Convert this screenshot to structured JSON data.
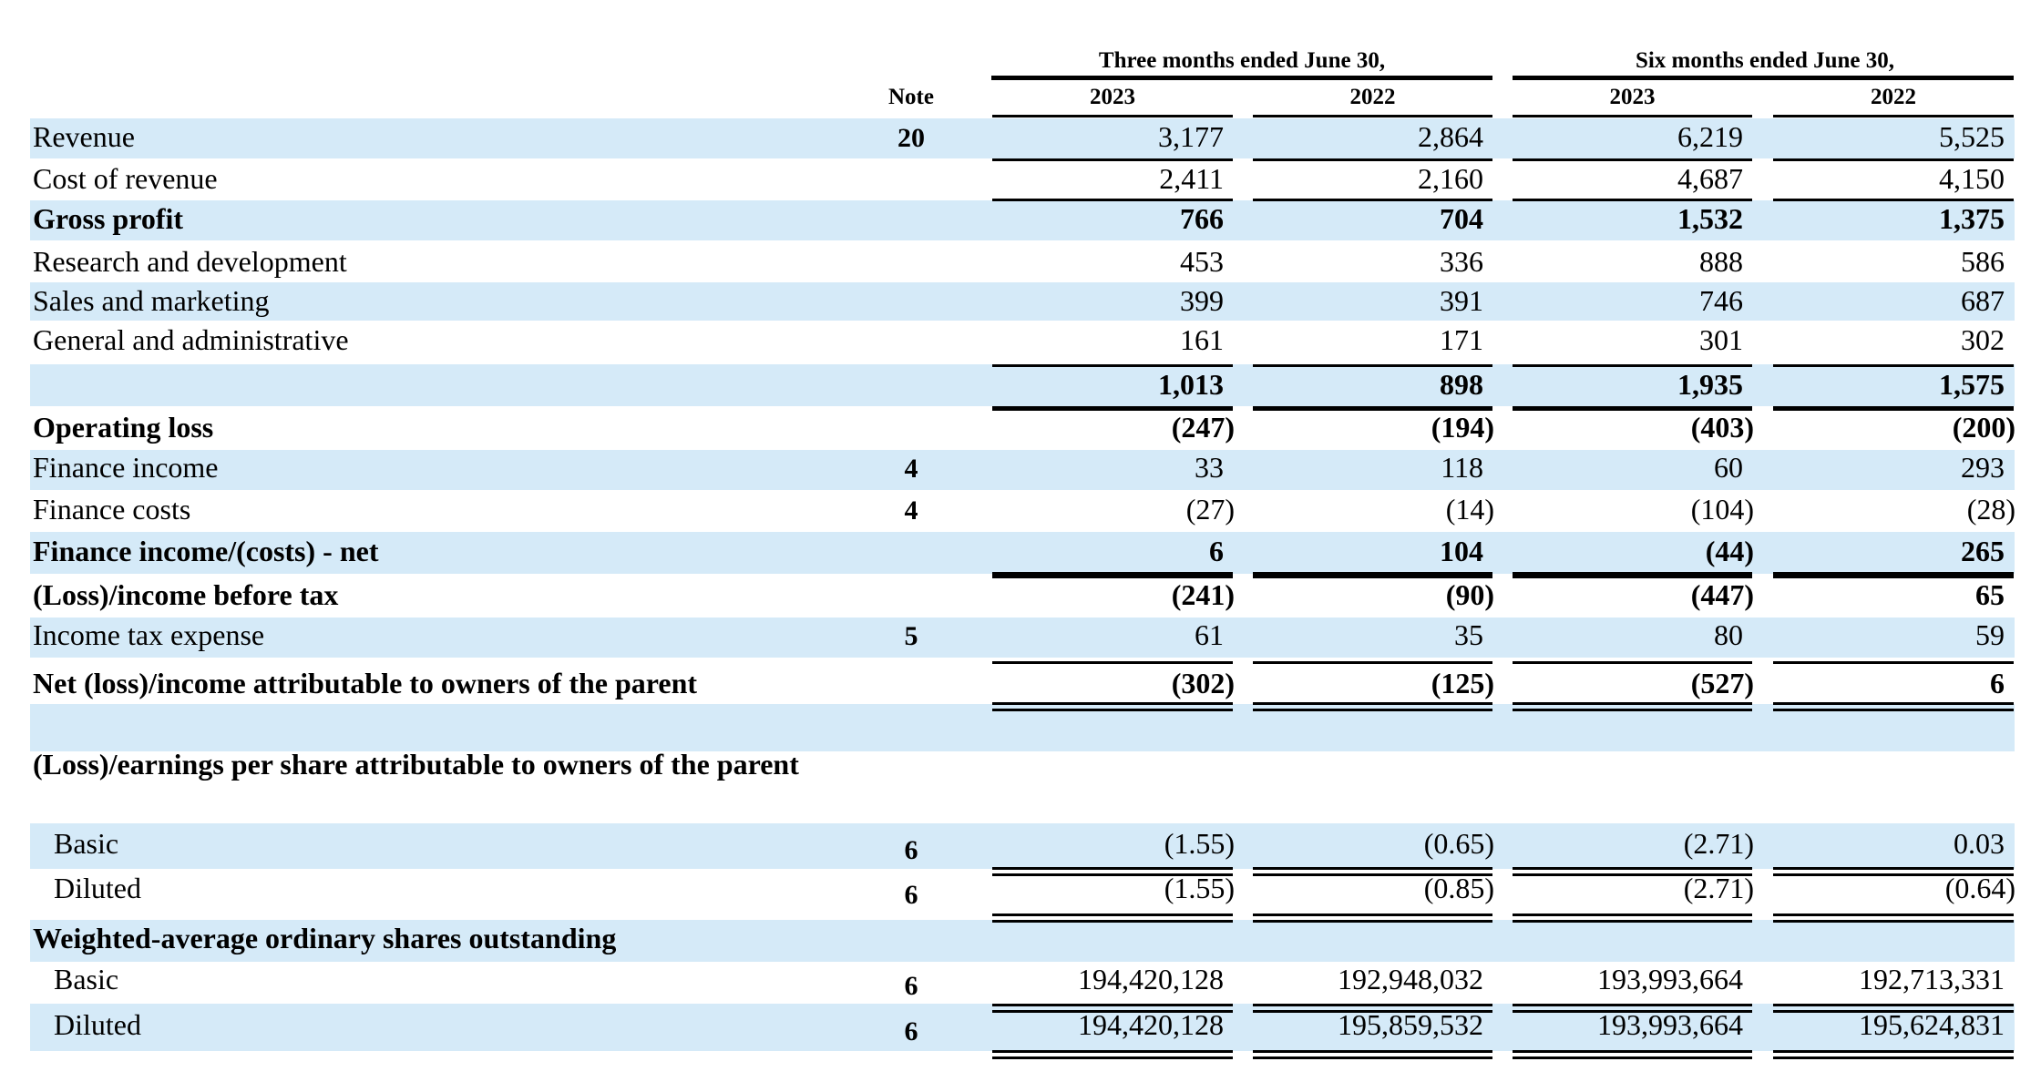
{
  "header": {
    "three_months": "Three months ended June 30,",
    "six_months": "Six months ended June 30,",
    "note_col": "Note",
    "years": [
      "2023",
      "2022",
      "2023",
      "2022"
    ]
  },
  "rows": [
    {
      "id": "revenue",
      "label": "Revenue",
      "note": "20",
      "values": [
        "3,177",
        "2,864",
        "6,219",
        "5,525"
      ],
      "bold": false
    },
    {
      "id": "cost-of-revenue",
      "label": "Cost of revenue",
      "note": "",
      "values": [
        "2,411",
        "2,160",
        "4,687",
        "4,150"
      ],
      "bold": false
    },
    {
      "id": "gross-profit",
      "label": "Gross profit",
      "note": "",
      "values": [
        "766",
        "704",
        "1,532",
        "1,375"
      ],
      "bold": true
    },
    {
      "id": "research-development",
      "label": "Research and development",
      "note": "",
      "values": [
        "453",
        "336",
        "888",
        "586"
      ],
      "bold": false
    },
    {
      "id": "sales-marketing",
      "label": "Sales and marketing",
      "note": "",
      "values": [
        "399",
        "391",
        "746",
        "687"
      ],
      "bold": false
    },
    {
      "id": "general-administrative",
      "label": "General and administrative",
      "note": "",
      "values": [
        "161",
        "171",
        "301",
        "302"
      ],
      "bold": false
    },
    {
      "id": "total-operating-expenses",
      "label": "",
      "note": "",
      "values": [
        "1,013",
        "898",
        "1,935",
        "1,575"
      ],
      "bold": true
    },
    {
      "id": "operating-loss",
      "label": "Operating loss",
      "note": "",
      "values": [
        "(247)",
        "(194)",
        "(403)",
        "(200)"
      ],
      "bold": true
    },
    {
      "id": "finance-income",
      "label": "Finance income",
      "note": "4",
      "values": [
        "33",
        "118",
        "60",
        "293"
      ],
      "bold": false
    },
    {
      "id": "finance-costs",
      "label": "Finance costs",
      "note": "4",
      "values": [
        "(27)",
        "(14)",
        "(104)",
        "(28)"
      ],
      "bold": false
    },
    {
      "id": "finance-net",
      "label": "Finance income/(costs) - net",
      "note": "",
      "values": [
        "6",
        "104",
        "(44)",
        "265"
      ],
      "bold": true
    },
    {
      "id": "income-before-tax",
      "label": "(Loss)/income before tax",
      "note": "",
      "values": [
        "(241)",
        "(90)",
        "(447)",
        "65"
      ],
      "bold": true
    },
    {
      "id": "income-tax",
      "label": "Income tax expense",
      "note": "5",
      "values": [
        "61",
        "35",
        "80",
        "59"
      ],
      "bold": false
    },
    {
      "id": "net-income",
      "label": "Net (loss)/income attributable to owners of the parent",
      "note": "",
      "values": [
        "(302)",
        "(125)",
        "(527)",
        "6"
      ],
      "bold": true
    },
    {
      "id": "eps-heading",
      "label": "(Loss)/earnings per share attributable to owners of the parent",
      "note": "",
      "values": [
        "",
        "",
        "",
        ""
      ],
      "bold": true
    },
    {
      "id": "eps-basic",
      "label": "Basic",
      "note": "6",
      "values": [
        "(1.55)",
        "(0.65)",
        "(2.71)",
        "0.03"
      ],
      "bold": false
    },
    {
      "id": "eps-diluted",
      "label": "Diluted",
      "note": "6",
      "values": [
        "(1.55)",
        "(0.85)",
        "(2.71)",
        "(0.64)"
      ],
      "bold": false
    },
    {
      "id": "shares-heading",
      "label": "Weighted-average ordinary shares outstanding",
      "note": "",
      "values": [
        "",
        "",
        "",
        ""
      ],
      "bold": true
    },
    {
      "id": "shares-basic",
      "label": "Basic",
      "note": "6",
      "values": [
        "194,420,128",
        "192,948,032",
        "193,993,664",
        "192,713,331"
      ],
      "bold": false
    },
    {
      "id": "shares-diluted",
      "label": "Diluted",
      "note": "6",
      "values": [
        "194,420,128",
        "195,859,532",
        "193,993,664",
        "195,624,831"
      ],
      "bold": false
    }
  ],
  "colors": {
    "band": "#d5eaf8",
    "text": "#000000"
  }
}
